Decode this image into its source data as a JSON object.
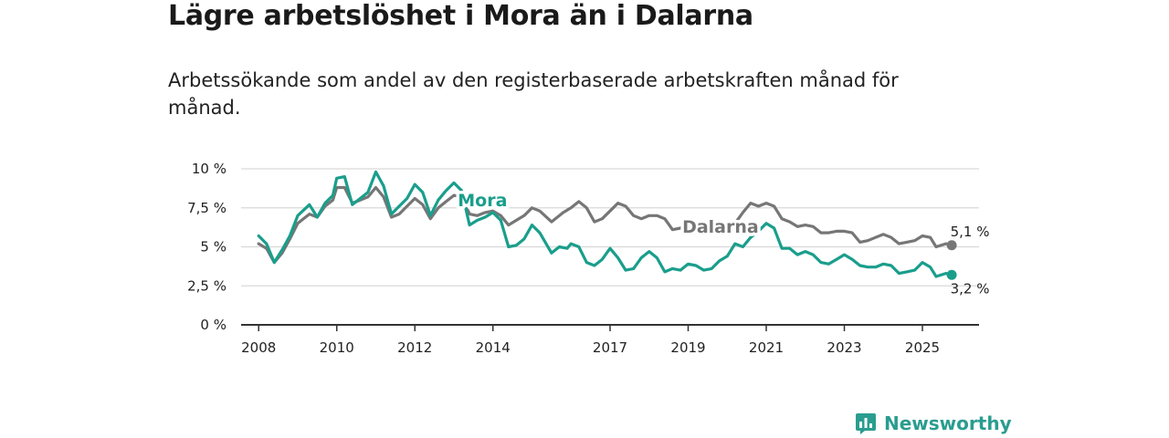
{
  "header": {
    "title": "Lägre arbetslöshet i Mora än i Dalarna",
    "subtitle": "Arbetssökande som andel av den registerbaserade arbetskraften månad för månad."
  },
  "brand": {
    "name": "Newsworthy",
    "icon": "newsworthy-logo-icon",
    "color": "#2a9d8f"
  },
  "chart_data": {
    "type": "line",
    "title": "Lägre arbetslöshet i Mora än i Dalarna",
    "xlabel": "",
    "ylabel": "",
    "ylim": [
      0,
      10
    ],
    "xlim": [
      2007.55,
      2026.45
    ],
    "grid": true,
    "yticks": [
      0,
      2.5,
      5,
      7.5,
      10
    ],
    "ytick_labels": [
      "0 %",
      "2,5 %",
      "5 %",
      "7,5 %",
      "10 %"
    ],
    "xticks": [
      2008,
      2010,
      2012,
      2014,
      2017,
      2019,
      2021,
      2023,
      2025
    ],
    "xtick_labels": [
      "2008",
      "2010",
      "2012",
      "2014",
      "2017",
      "2019",
      "2021",
      "2023",
      "2025"
    ],
    "series": [
      {
        "name": "Dalarna",
        "color": "#767676",
        "end_label": "5,1 %",
        "end_value": 5.1,
        "points": [
          [
            2008.0,
            5.2
          ],
          [
            2008.2,
            4.9
          ],
          [
            2008.4,
            4.0
          ],
          [
            2008.6,
            4.6
          ],
          [
            2008.8,
            5.5
          ],
          [
            2009.0,
            6.5
          ],
          [
            2009.3,
            7.1
          ],
          [
            2009.5,
            6.9
          ],
          [
            2009.7,
            7.6
          ],
          [
            2009.9,
            8.0
          ],
          [
            2010.0,
            8.8
          ],
          [
            2010.2,
            8.8
          ],
          [
            2010.4,
            7.8
          ],
          [
            2010.6,
            8.0
          ],
          [
            2010.8,
            8.2
          ],
          [
            2011.0,
            8.8
          ],
          [
            2011.2,
            8.2
          ],
          [
            2011.4,
            6.9
          ],
          [
            2011.6,
            7.1
          ],
          [
            2011.8,
            7.6
          ],
          [
            2012.0,
            8.1
          ],
          [
            2012.2,
            7.7
          ],
          [
            2012.4,
            6.8
          ],
          [
            2012.6,
            7.5
          ],
          [
            2012.8,
            7.9
          ],
          [
            2013.0,
            8.3
          ],
          [
            2013.2,
            8.2
          ],
          [
            2013.4,
            7.1
          ],
          [
            2013.6,
            7.0
          ],
          [
            2013.8,
            7.2
          ],
          [
            2014.0,
            7.3
          ],
          [
            2014.2,
            7.0
          ],
          [
            2014.4,
            6.4
          ],
          [
            2014.6,
            6.7
          ],
          [
            2014.8,
            7.0
          ],
          [
            2015.0,
            7.5
          ],
          [
            2015.2,
            7.3
          ],
          [
            2015.5,
            6.6
          ],
          [
            2015.8,
            7.2
          ],
          [
            2016.0,
            7.5
          ],
          [
            2016.2,
            7.9
          ],
          [
            2016.4,
            7.5
          ],
          [
            2016.6,
            6.6
          ],
          [
            2016.8,
            6.8
          ],
          [
            2017.0,
            7.3
          ],
          [
            2017.2,
            7.8
          ],
          [
            2017.4,
            7.6
          ],
          [
            2017.6,
            7.0
          ],
          [
            2017.8,
            6.8
          ],
          [
            2018.0,
            7.0
          ],
          [
            2018.2,
            7.0
          ],
          [
            2018.4,
            6.8
          ],
          [
            2018.6,
            6.1
          ],
          [
            2018.8,
            6.2
          ],
          [
            2019.0,
            6.5
          ],
          [
            2019.2,
            6.4
          ],
          [
            2019.5,
            6.0
          ],
          [
            2019.8,
            6.1
          ],
          [
            2020.0,
            6.2
          ],
          [
            2020.2,
            6.5
          ],
          [
            2020.4,
            7.2
          ],
          [
            2020.6,
            7.8
          ],
          [
            2020.8,
            7.6
          ],
          [
            2021.0,
            7.8
          ],
          [
            2021.2,
            7.6
          ],
          [
            2021.4,
            6.8
          ],
          [
            2021.6,
            6.6
          ],
          [
            2021.8,
            6.3
          ],
          [
            2022.0,
            6.4
          ],
          [
            2022.2,
            6.3
          ],
          [
            2022.4,
            5.9
          ],
          [
            2022.6,
            5.9
          ],
          [
            2022.8,
            6.0
          ],
          [
            2023.0,
            6.0
          ],
          [
            2023.2,
            5.9
          ],
          [
            2023.4,
            5.3
          ],
          [
            2023.6,
            5.4
          ],
          [
            2023.8,
            5.6
          ],
          [
            2024.0,
            5.8
          ],
          [
            2024.2,
            5.6
          ],
          [
            2024.4,
            5.2
          ],
          [
            2024.6,
            5.3
          ],
          [
            2024.8,
            5.4
          ],
          [
            2025.0,
            5.7
          ],
          [
            2025.2,
            5.6
          ],
          [
            2025.35,
            5.0
          ],
          [
            2025.6,
            5.2
          ],
          [
            2025.75,
            5.1
          ]
        ]
      },
      {
        "name": "Mora",
        "color": "#1a9e8c",
        "end_label": "3,2 %",
        "end_value": 3.2,
        "points": [
          [
            2008.0,
            5.7
          ],
          [
            2008.2,
            5.2
          ],
          [
            2008.4,
            4.0
          ],
          [
            2008.6,
            4.8
          ],
          [
            2008.8,
            5.7
          ],
          [
            2009.0,
            7.0
          ],
          [
            2009.3,
            7.7
          ],
          [
            2009.5,
            6.9
          ],
          [
            2009.7,
            7.8
          ],
          [
            2009.9,
            8.3
          ],
          [
            2010.0,
            9.4
          ],
          [
            2010.2,
            9.5
          ],
          [
            2010.4,
            7.7
          ],
          [
            2010.6,
            8.1
          ],
          [
            2010.8,
            8.5
          ],
          [
            2011.0,
            9.8
          ],
          [
            2011.2,
            8.9
          ],
          [
            2011.4,
            7.1
          ],
          [
            2011.6,
            7.6
          ],
          [
            2011.8,
            8.1
          ],
          [
            2012.0,
            9.0
          ],
          [
            2012.2,
            8.5
          ],
          [
            2012.4,
            7.0
          ],
          [
            2012.6,
            8.0
          ],
          [
            2012.8,
            8.6
          ],
          [
            2013.0,
            9.1
          ],
          [
            2013.2,
            8.6
          ],
          [
            2013.4,
            6.4
          ],
          [
            2013.6,
            6.7
          ],
          [
            2013.8,
            6.9
          ],
          [
            2014.0,
            7.2
          ],
          [
            2014.2,
            6.7
          ],
          [
            2014.4,
            5.0
          ],
          [
            2014.6,
            5.1
          ],
          [
            2014.8,
            5.5
          ],
          [
            2015.0,
            6.4
          ],
          [
            2015.2,
            5.9
          ],
          [
            2015.5,
            4.6
          ],
          [
            2015.7,
            5.0
          ],
          [
            2015.9,
            4.9
          ],
          [
            2016.0,
            5.2
          ],
          [
            2016.2,
            5.0
          ],
          [
            2016.4,
            4.0
          ],
          [
            2016.6,
            3.8
          ],
          [
            2016.8,
            4.2
          ],
          [
            2017.0,
            4.9
          ],
          [
            2017.2,
            4.3
          ],
          [
            2017.4,
            3.5
          ],
          [
            2017.6,
            3.6
          ],
          [
            2017.8,
            4.3
          ],
          [
            2018.0,
            4.7
          ],
          [
            2018.2,
            4.3
          ],
          [
            2018.4,
            3.4
          ],
          [
            2018.6,
            3.6
          ],
          [
            2018.8,
            3.5
          ],
          [
            2019.0,
            3.9
          ],
          [
            2019.2,
            3.8
          ],
          [
            2019.4,
            3.5
          ],
          [
            2019.6,
            3.6
          ],
          [
            2019.8,
            4.1
          ],
          [
            2020.0,
            4.4
          ],
          [
            2020.2,
            5.2
          ],
          [
            2020.4,
            5.0
          ],
          [
            2020.6,
            5.6
          ],
          [
            2020.8,
            6.0
          ],
          [
            2021.0,
            6.5
          ],
          [
            2021.2,
            6.2
          ],
          [
            2021.4,
            4.9
          ],
          [
            2021.6,
            4.9
          ],
          [
            2021.8,
            4.5
          ],
          [
            2022.0,
            4.7
          ],
          [
            2022.2,
            4.5
          ],
          [
            2022.4,
            4.0
          ],
          [
            2022.6,
            3.9
          ],
          [
            2022.8,
            4.2
          ],
          [
            2023.0,
            4.5
          ],
          [
            2023.2,
            4.2
          ],
          [
            2023.4,
            3.8
          ],
          [
            2023.6,
            3.7
          ],
          [
            2023.8,
            3.7
          ],
          [
            2024.0,
            3.9
          ],
          [
            2024.2,
            3.8
          ],
          [
            2024.4,
            3.3
          ],
          [
            2024.6,
            3.4
          ],
          [
            2024.8,
            3.5
          ],
          [
            2025.0,
            4.0
          ],
          [
            2025.2,
            3.7
          ],
          [
            2025.35,
            3.1
          ],
          [
            2025.6,
            3.3
          ],
          [
            2025.75,
            3.2
          ]
        ]
      }
    ]
  }
}
